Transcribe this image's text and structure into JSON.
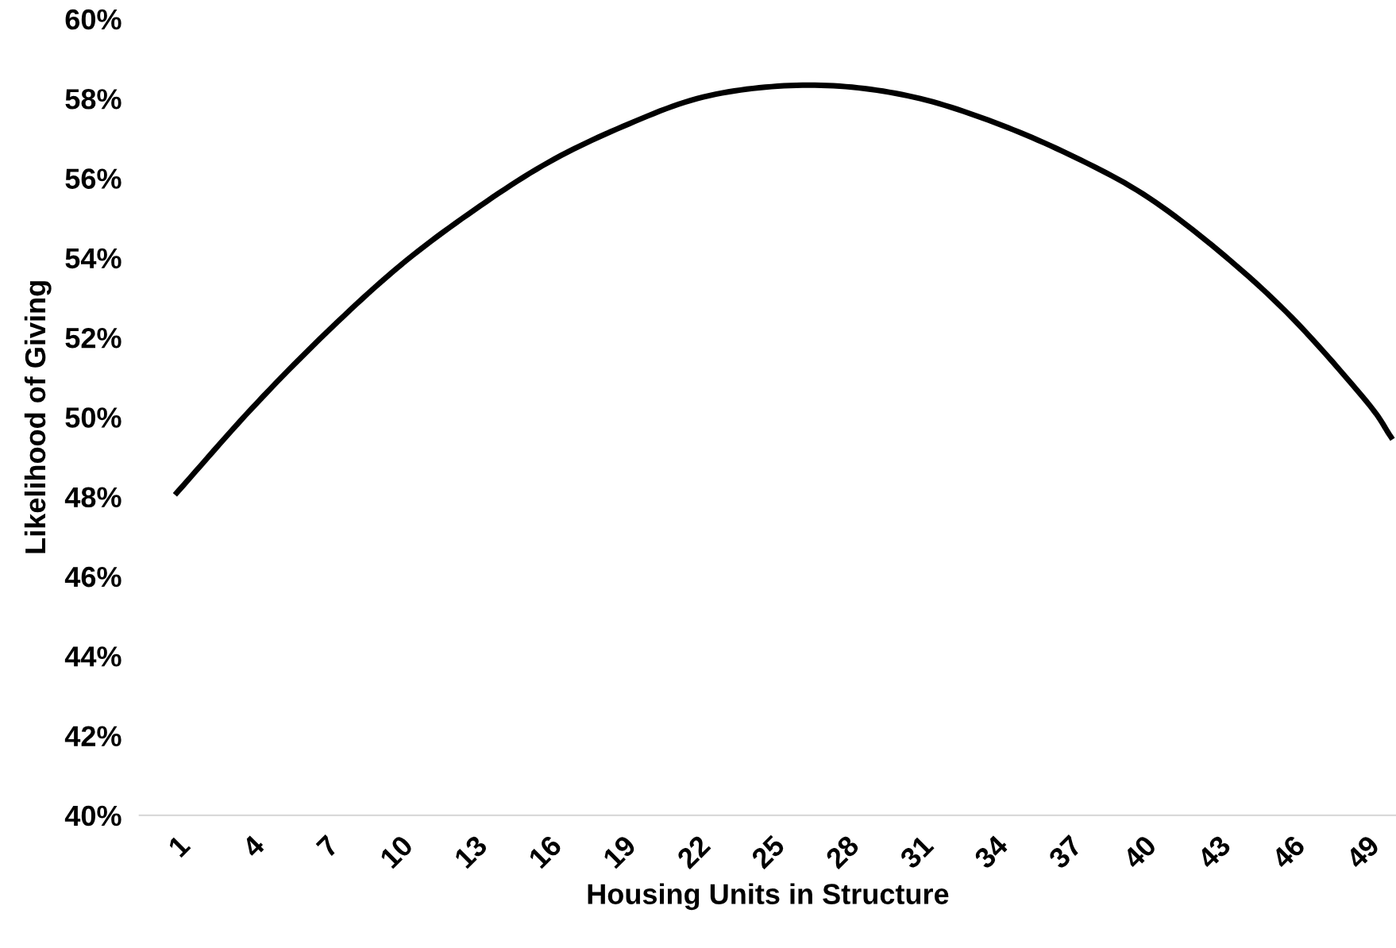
{
  "chart_data": {
    "type": "line",
    "xlabel": "Housing Units in Structure",
    "ylabel": "Likelihood of Giving",
    "x": [
      1,
      4,
      7,
      10,
      13,
      16,
      19,
      22,
      25,
      28,
      31,
      34,
      37,
      40,
      43,
      46,
      49,
      50
    ],
    "series": [
      {
        "color": "#000000",
        "values": [
          48.1,
          50.2,
          52.1,
          53.8,
          55.2,
          56.4,
          57.3,
          58.0,
          58.3,
          58.3,
          58.0,
          57.4,
          56.6,
          55.6,
          54.2,
          52.5,
          50.4,
          49.5
        ]
      }
    ],
    "xlim": [
      -0.5,
      50.2
    ],
    "xticks": [
      1,
      4,
      7,
      10,
      13,
      16,
      19,
      22,
      25,
      28,
      31,
      34,
      37,
      40,
      43,
      46,
      49
    ],
    "ylim": [
      40,
      60
    ],
    "yticks": [
      {
        "value": 40,
        "label": "40%"
      },
      {
        "value": 42,
        "label": "42%"
      },
      {
        "value": 44,
        "label": "44%"
      },
      {
        "value": 46,
        "label": "46%"
      },
      {
        "value": 48,
        "label": "48%"
      },
      {
        "value": 50,
        "label": "50%"
      },
      {
        "value": 52,
        "label": "52%"
      },
      {
        "value": 54,
        "label": "54%"
      },
      {
        "value": 56,
        "label": "56%"
      },
      {
        "value": 58,
        "label": "58%"
      },
      {
        "value": 60,
        "label": "60%"
      }
    ],
    "grid": false,
    "legend": false,
    "marker": "none",
    "line_style": "solid"
  }
}
